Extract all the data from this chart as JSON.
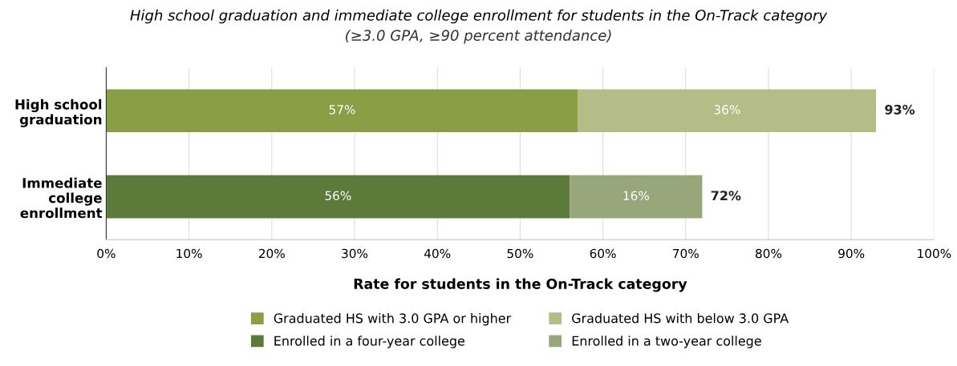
{
  "chart_data": {
    "type": "bar",
    "orientation": "horizontal",
    "stacked": true,
    "title": "High school graduation and immediate college enrollment for students in the On-Track category",
    "subtitle": "(≥3.0 GPA, ≥90 percent attendance)",
    "xlabel": "Rate for students in the On-Track category",
    "categories": [
      "High school\ngraduation",
      "Immediate\ncollege\nenrollment"
    ],
    "series": [
      {
        "name": "Graduated HS with 3.0 GPA or higher",
        "color": "#8a9f45",
        "values": [
          57,
          null
        ],
        "value_labels": [
          "57%",
          null
        ]
      },
      {
        "name": "Graduated HS with below 3.0 GPA",
        "color": "#b4bd87",
        "values": [
          36,
          null
        ],
        "value_labels": [
          "36%",
          null
        ]
      },
      {
        "name": "Enrolled in a four-year college",
        "color": "#5c7a3a",
        "values": [
          null,
          56
        ],
        "value_labels": [
          null,
          "56%"
        ]
      },
      {
        "name": "Enrolled in a two-year college",
        "color": "#97a77a",
        "values": [
          null,
          16
        ],
        "value_labels": [
          null,
          "16%"
        ]
      }
    ],
    "totals": [
      "93%",
      "72%"
    ],
    "xlim": [
      0,
      100
    ],
    "xticks": [
      {
        "value": 0,
        "label": "0%"
      },
      {
        "value": 10,
        "label": "10%"
      },
      {
        "value": 20,
        "label": "20%"
      },
      {
        "value": 30,
        "label": "30%"
      },
      {
        "value": 40,
        "label": "40%"
      },
      {
        "value": 50,
        "label": "50%"
      },
      {
        "value": 60,
        "label": "60%"
      },
      {
        "value": 70,
        "label": "70%"
      },
      {
        "value": 80,
        "label": "80%"
      },
      {
        "value": 90,
        "label": "90%"
      },
      {
        "value": 100,
        "label": "100%"
      }
    ],
    "grid": "x",
    "legend": "bottom"
  }
}
